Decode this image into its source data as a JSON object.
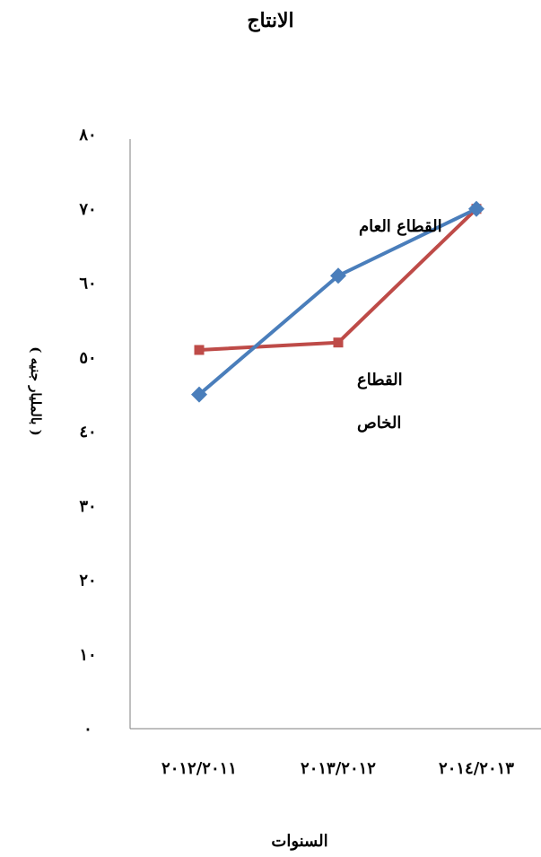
{
  "chart_data": {
    "type": "line",
    "title": "الانتاج",
    "xlabel": "السنوات",
    "ylabel": "( بالمليار جنيه )",
    "categories": [
      "٢٠١٢/٢٠١١",
      "٢٠١٣/٢٠١٢",
      "٢٠١٤/٢٠١٣"
    ],
    "y_tick_labels": [
      "٠",
      "١٠",
      "٢٠",
      "٣٠",
      "٤٠",
      "٥٠",
      "٦٠",
      "٧٠",
      "٨٠"
    ],
    "ylim": [
      0,
      80
    ],
    "grid": false,
    "series": [
      {
        "name": "القطاع العام",
        "values": [
          45,
          61,
          70
        ],
        "color": "#4a7ebb",
        "marker": "diamond"
      },
      {
        "name": "القطاع الخاص",
        "values": [
          51,
          52,
          70
        ],
        "color": "#be4b48",
        "marker": "square"
      }
    ],
    "annotations": [
      {
        "series": 0,
        "lines": [
          "القطاع العام"
        ]
      },
      {
        "series": 1,
        "lines": [
          "القطاع",
          "الخاص"
        ]
      }
    ]
  }
}
